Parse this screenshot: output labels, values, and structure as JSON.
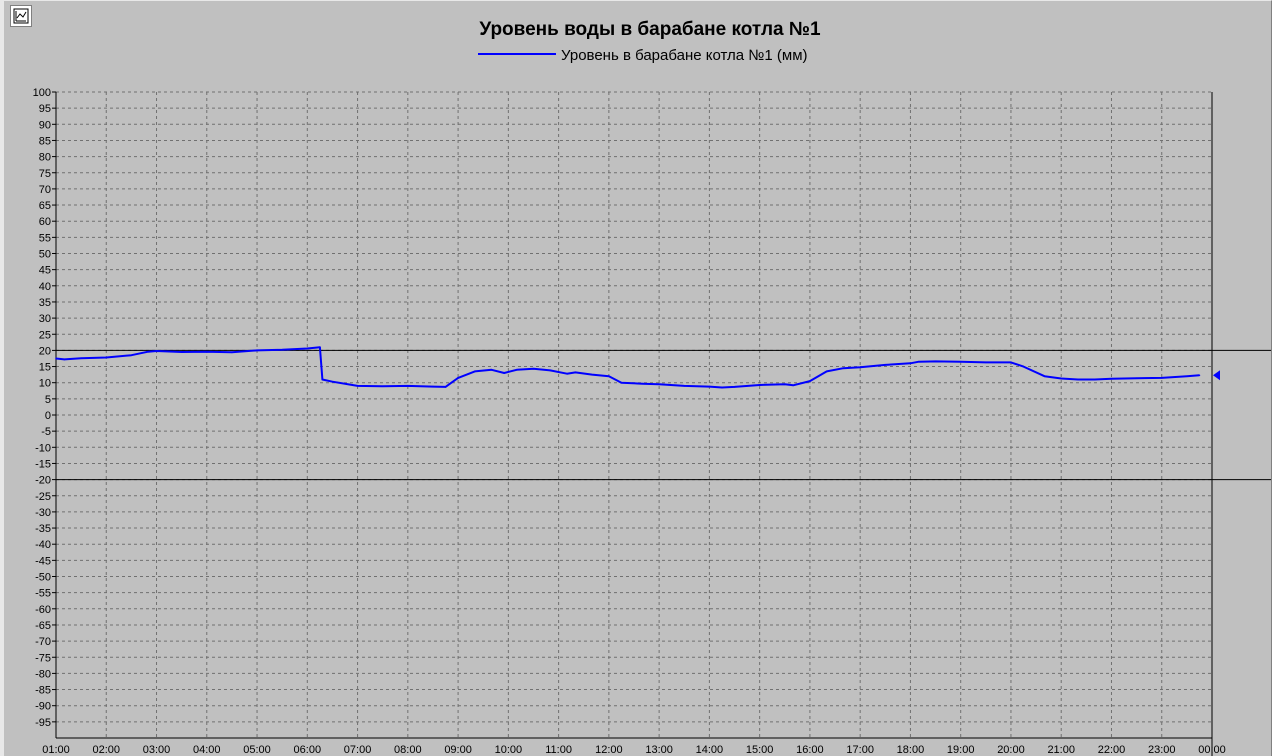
{
  "toolbar": {
    "chart_button_icon": "chart-icon"
  },
  "colors": {
    "background": "#c0c0c0",
    "series": "#0000ff",
    "grid": "#707070",
    "limit": "#000000"
  },
  "chart_data": {
    "type": "line",
    "title": "Уровень воды в барабане котла №1",
    "xlabel": "",
    "ylabel": "",
    "ylim": [
      -100,
      100
    ],
    "y_ticks": [
      100,
      95,
      90,
      85,
      80,
      75,
      70,
      65,
      60,
      55,
      50,
      45,
      40,
      35,
      30,
      25,
      20,
      15,
      10,
      5,
      0,
      -5,
      -10,
      -15,
      -20,
      -25,
      -30,
      -35,
      -40,
      -45,
      -50,
      -55,
      -60,
      -65,
      -70,
      -75,
      -80,
      -85,
      -90,
      -95
    ],
    "x_ticks": [
      "01:00",
      "02:00",
      "03:00",
      "04:00",
      "05:00",
      "06:00",
      "07:00",
      "08:00",
      "09:00",
      "10:00",
      "11:00",
      "12:00",
      "13:00",
      "14:00",
      "15:00",
      "16:00",
      "17:00",
      "18:00",
      "19:00",
      "20:00",
      "21:00",
      "22:00",
      "23:00",
      "00:00"
    ],
    "grid": true,
    "legend_position": "top-center",
    "limit_lines": [
      20,
      -20
    ],
    "cursor_time": "00:00",
    "series": [
      {
        "name": "Уровень в барабане котла №1 (мм)",
        "points": [
          [
            "01:00",
            17.5
          ],
          [
            "01:10",
            17.2
          ],
          [
            "01:30",
            17.6
          ],
          [
            "02:00",
            17.8
          ],
          [
            "02:30",
            18.5
          ],
          [
            "02:50",
            19.6
          ],
          [
            "03:00",
            19.8
          ],
          [
            "03:30",
            19.5
          ],
          [
            "04:00",
            19.6
          ],
          [
            "04:30",
            19.4
          ],
          [
            "05:00",
            20.0
          ],
          [
            "05:30",
            20.2
          ],
          [
            "06:00",
            20.6
          ],
          [
            "06:15",
            21.0
          ],
          [
            "06:18",
            11.0
          ],
          [
            "06:30",
            10.3
          ],
          [
            "07:00",
            9.0
          ],
          [
            "07:30",
            8.9
          ],
          [
            "08:00",
            9.0
          ],
          [
            "08:30",
            8.8
          ],
          [
            "08:45",
            8.7
          ],
          [
            "09:00",
            11.5
          ],
          [
            "09:20",
            13.5
          ],
          [
            "09:40",
            14.0
          ],
          [
            "09:55",
            13.0
          ],
          [
            "10:10",
            14.0
          ],
          [
            "10:30",
            14.3
          ],
          [
            "10:50",
            13.8
          ],
          [
            "11:10",
            12.8
          ],
          [
            "11:20",
            13.2
          ],
          [
            "11:40",
            12.5
          ],
          [
            "12:00",
            12.0
          ],
          [
            "12:15",
            10.0
          ],
          [
            "12:40",
            9.7
          ],
          [
            "13:00",
            9.5
          ],
          [
            "13:30",
            9.0
          ],
          [
            "14:00",
            8.8
          ],
          [
            "14:15",
            8.5
          ],
          [
            "14:30",
            8.7
          ],
          [
            "15:00",
            9.3
          ],
          [
            "15:30",
            9.5
          ],
          [
            "15:40",
            9.2
          ],
          [
            "16:00",
            10.5
          ],
          [
            "16:20",
            13.5
          ],
          [
            "16:40",
            14.5
          ],
          [
            "17:00",
            14.8
          ],
          [
            "17:30",
            15.5
          ],
          [
            "18:00",
            16.0
          ],
          [
            "18:10",
            16.5
          ],
          [
            "18:30",
            16.6
          ],
          [
            "19:00",
            16.5
          ],
          [
            "19:30",
            16.3
          ],
          [
            "20:00",
            16.3
          ],
          [
            "20:15",
            15.0
          ],
          [
            "20:40",
            12.0
          ],
          [
            "21:00",
            11.3
          ],
          [
            "21:20",
            11.0
          ],
          [
            "21:40",
            11.0
          ],
          [
            "22:00",
            11.2
          ],
          [
            "22:30",
            11.4
          ],
          [
            "23:00",
            11.5
          ],
          [
            "23:30",
            12.0
          ],
          [
            "23:45",
            12.3
          ]
        ]
      }
    ]
  }
}
